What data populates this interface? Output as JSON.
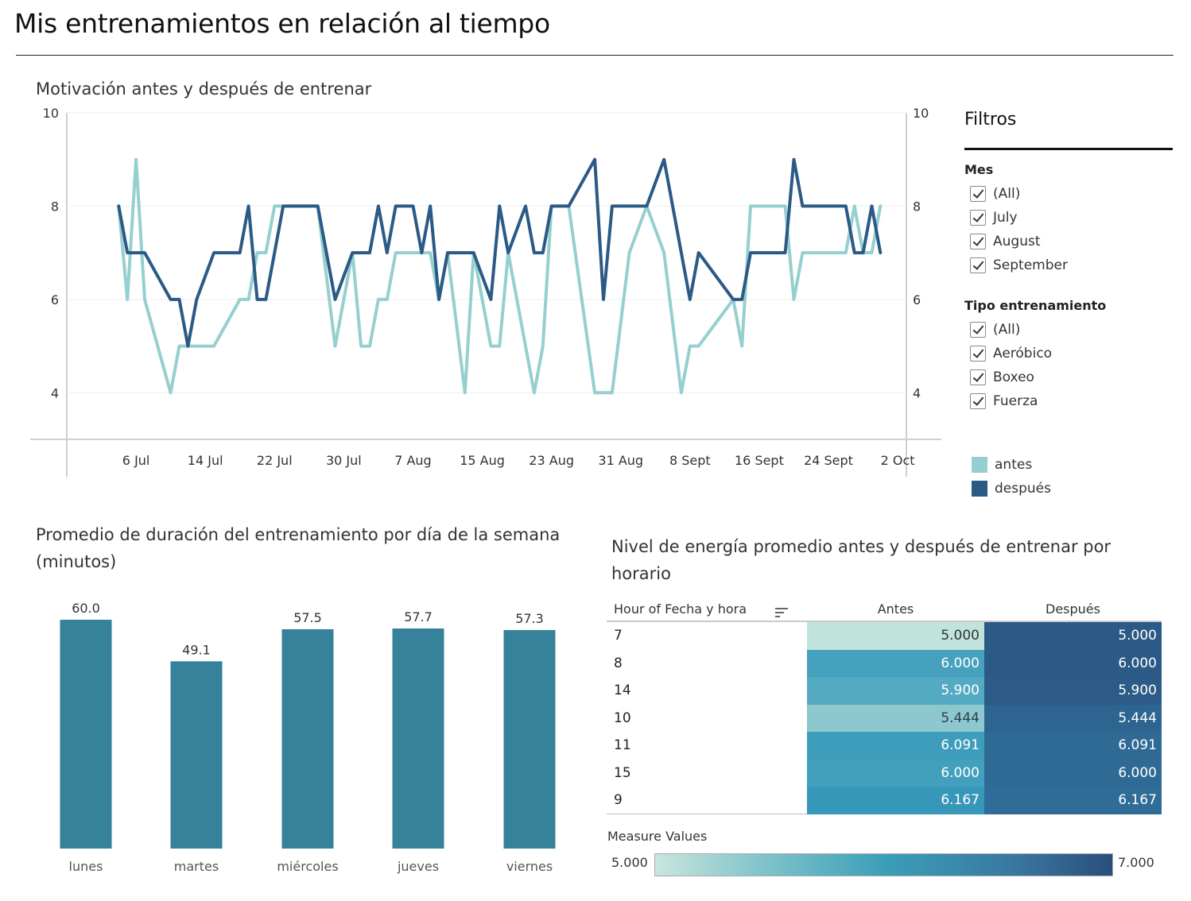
{
  "dashboard": {
    "title": "Mis entrenamientos en relación al tiempo"
  },
  "line_chart": {
    "title": "Motivación antes y después de entrenar"
  },
  "bar_chart": {
    "title": "Promedio de duración del entrenamiento por día de la semana (minutos)"
  },
  "heatmap": {
    "title": "Nivel de energía promedio antes y después de entrenar por horario",
    "row_header": "Hour of Fecha y hora",
    "col_headers": [
      "Antes",
      "Después"
    ],
    "rows": [
      {
        "hour": "7",
        "antes": "5.000",
        "despues": "5.000",
        "antes_color": "#c0e4db",
        "despues_color": "#2b5a86"
      },
      {
        "hour": "8",
        "antes": "6.000",
        "despues": "6.000",
        "antes_color": "#45a1bd",
        "despues_color": "#2b5a86"
      },
      {
        "hour": "14",
        "antes": "5.900",
        "despues": "5.900",
        "antes_color": "#55aac3",
        "despues_color": "#2c5b88"
      },
      {
        "hour": "10",
        "antes": "5.444",
        "despues": "5.444",
        "antes_color": "#8dc8cf",
        "despues_color": "#2e6490"
      },
      {
        "hour": "11",
        "antes": "6.091",
        "despues": "6.091",
        "antes_color": "#3e9dbb",
        "despues_color": "#2f6a95"
      },
      {
        "hour": "15",
        "antes": "6.000",
        "despues": "6.000",
        "antes_color": "#43a0bc",
        "despues_color": "#2f6a95"
      },
      {
        "hour": "9",
        "antes": "6.167",
        "despues": "6.167",
        "antes_color": "#3797b8",
        "despues_color": "#2f6d98"
      }
    ],
    "legend_title": "Measure Values",
    "legend_min": "5.000",
    "legend_max": "7.000"
  },
  "filters": {
    "title": "Filtros",
    "mes": {
      "label": "Mes",
      "options": [
        "(All)",
        "July",
        "August",
        "September"
      ]
    },
    "tipo": {
      "label": "Tipo entrenamiento",
      "options": [
        "(All)",
        "Aeróbico",
        "Boxeo",
        "Fuerza"
      ]
    }
  },
  "legend": [
    {
      "label": "antes",
      "color": "#95cfcf"
    },
    {
      "label": "después",
      "color": "#2b5a86"
    }
  ],
  "chart_data": [
    {
      "type": "line",
      "title": "Motivación antes y después de entrenar",
      "ylim": [
        3,
        10
      ],
      "yticks": [
        "10",
        "8",
        "6",
        "4"
      ],
      "yticks_values": [
        10,
        8,
        6,
        4
      ],
      "xlim": [
        "2024-06-28",
        "2024-10-03"
      ],
      "xticks": [
        "6 Jul",
        "14 Jul",
        "22 Jul",
        "30 Jul",
        "7 Aug",
        "15 Aug",
        "23 Aug",
        "31 Aug",
        "8 Sept",
        "16 Sept",
        "24 Sept",
        "2 Oct"
      ],
      "xtick_dates": [
        "2024-07-06",
        "2024-07-14",
        "2024-07-22",
        "2024-07-30",
        "2024-08-07",
        "2024-08-15",
        "2024-08-23",
        "2024-08-31",
        "2024-09-08",
        "2024-09-16",
        "2024-09-24",
        "2024-10-02"
      ],
      "grid": true,
      "legend": "right",
      "x": [
        "2024-07-04",
        "2024-07-05",
        "2024-07-06",
        "2024-07-07",
        "2024-07-10",
        "2024-07-11",
        "2024-07-12",
        "2024-07-13",
        "2024-07-15",
        "2024-07-18",
        "2024-07-19",
        "2024-07-20",
        "2024-07-21",
        "2024-07-22",
        "2024-07-23",
        "2024-07-26",
        "2024-07-27",
        "2024-07-29",
        "2024-07-31",
        "2024-08-01",
        "2024-08-02",
        "2024-08-03",
        "2024-08-04",
        "2024-08-05",
        "2024-08-07",
        "2024-08-08",
        "2024-08-09",
        "2024-08-10",
        "2024-08-11",
        "2024-08-13",
        "2024-08-14",
        "2024-08-16",
        "2024-08-17",
        "2024-08-18",
        "2024-08-20",
        "2024-08-21",
        "2024-08-22",
        "2024-08-23",
        "2024-08-24",
        "2024-08-25",
        "2024-08-28",
        "2024-08-29",
        "2024-08-30",
        "2024-09-01",
        "2024-09-03",
        "2024-09-05",
        "2024-09-07",
        "2024-09-08",
        "2024-09-09",
        "2024-09-13",
        "2024-09-14",
        "2024-09-15",
        "2024-09-16",
        "2024-09-19",
        "2024-09-20",
        "2024-09-21",
        "2024-09-23",
        "2024-09-26",
        "2024-09-27",
        "2024-09-28",
        "2024-09-29",
        "2024-09-30"
      ],
      "series": [
        {
          "name": "antes",
          "color": "#95cfcf",
          "values": [
            8,
            6,
            9,
            6,
            4,
            5,
            5,
            5,
            5,
            6,
            6,
            7,
            7,
            8,
            8,
            8,
            8,
            5,
            7,
            5,
            5,
            6,
            6,
            7,
            7,
            7,
            7,
            6,
            7,
            4,
            7,
            5,
            5,
            7,
            5,
            4,
            5,
            8,
            8,
            8,
            4,
            4,
            4,
            7,
            8,
            7,
            4,
            5,
            5,
            6,
            5,
            8,
            8,
            8,
            6,
            7,
            7,
            7,
            8,
            7,
            7,
            8
          ]
        },
        {
          "name": "después",
          "color": "#2b5a86",
          "values": [
            8,
            7,
            7,
            7,
            6,
            6,
            5,
            6,
            7,
            7,
            8,
            6,
            6,
            7,
            8,
            8,
            8,
            6,
            7,
            7,
            7,
            8,
            7,
            8,
            8,
            7,
            8,
            6,
            7,
            7,
            7,
            6,
            8,
            7,
            8,
            7,
            7,
            8,
            8,
            8,
            9,
            6,
            8,
            8,
            8,
            9,
            7,
            6,
            7,
            6,
            6,
            7,
            7,
            7,
            9,
            8,
            8,
            8,
            7,
            7,
            8,
            7
          ]
        }
      ]
    },
    {
      "type": "bar",
      "title": "Promedio de duración del entrenamiento por día de la semana (minutos)",
      "categories": [
        "lunes",
        "martes",
        "miércoles",
        "jueves",
        "viernes"
      ],
      "values": [
        60.0,
        49.1,
        57.5,
        57.7,
        57.3
      ],
      "labels": [
        "60.0",
        "49.1",
        "57.5",
        "57.7",
        "57.3"
      ],
      "color": "#36829b",
      "ylim": [
        0,
        65
      ]
    },
    {
      "type": "heatmap",
      "title": "Nivel de energía promedio antes y después de entrenar por horario",
      "rows": [
        "7",
        "8",
        "14",
        "10",
        "11",
        "15",
        "9"
      ],
      "columns": [
        "Antes",
        "Después"
      ],
      "values": [
        [
          5.0,
          5.0
        ],
        [
          6.0,
          6.0
        ],
        [
          5.9,
          5.9
        ],
        [
          5.444,
          5.444
        ],
        [
          6.091,
          6.091
        ],
        [
          6.0,
          6.0
        ],
        [
          6.167,
          6.167
        ]
      ],
      "color_range": [
        5.0,
        7.0
      ]
    }
  ]
}
